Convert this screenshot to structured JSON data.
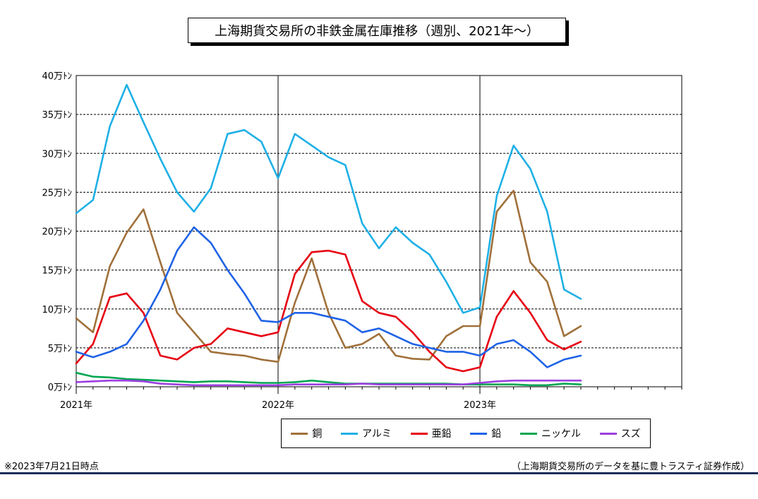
{
  "title": "上海期貨交易所の非鉄金属在庫推移（週別、2021年～）",
  "note_left": "※2023年7月21日時点",
  "note_right": "（上海期貨交易所のデータを基に豊トラスティ証券作成）",
  "chart_data": {
    "type": "line",
    "title": "上海期貨交易所の非鉄金属在庫推移（週別、2021年～）",
    "xlabel": "",
    "ylabel": "",
    "ylim": [
      0,
      40
    ],
    "y_unit": "万トン",
    "y_ticks": [
      0,
      5,
      10,
      15,
      20,
      25,
      30,
      35,
      40
    ],
    "y_tick_labels": [
      "0万ﾄﾝ",
      "5万ﾄﾝ",
      "10万ﾄﾝ",
      "15万ﾄﾝ",
      "20万ﾄﾝ",
      "25万ﾄﾝ",
      "30万ﾄﾝ",
      "35万ﾄﾝ",
      "40万ﾄﾝ"
    ],
    "x_range": [
      "2021-01",
      "2024-01"
    ],
    "x_ticks": [
      "2021-01",
      "2022-01",
      "2023-01"
    ],
    "x_tick_labels": [
      "2021年",
      "2022年",
      "2023年"
    ],
    "x_minor_ticks": "monthly",
    "grid": "horizontal-dashed",
    "legend_position": "bottom",
    "series": [
      {
        "name": "銅",
        "color": "#a0703a",
        "x": [
          "2021-01",
          "2021-02",
          "2021-03",
          "2021-04",
          "2021-05",
          "2021-06",
          "2021-07",
          "2021-08",
          "2021-09",
          "2021-10",
          "2021-11",
          "2021-12",
          "2022-01",
          "2022-02",
          "2022-03",
          "2022-04",
          "2022-05",
          "2022-06",
          "2022-07",
          "2022-08",
          "2022-09",
          "2022-10",
          "2022-11",
          "2022-12",
          "2023-01",
          "2023-02",
          "2023-03",
          "2023-04",
          "2023-05",
          "2023-06",
          "2023-07"
        ],
        "values": [
          8.8,
          7.0,
          15.5,
          19.8,
          22.8,
          16.0,
          9.5,
          7.0,
          4.5,
          4.2,
          4.0,
          3.5,
          3.2,
          10.8,
          16.5,
          9.5,
          5.0,
          5.5,
          6.8,
          4.0,
          3.6,
          3.5,
          6.5,
          7.8,
          7.8,
          22.5,
          25.2,
          16.0,
          13.5,
          6.5,
          7.8
        ]
      },
      {
        "name": "アルミ",
        "color": "#1fb0e6",
        "x": [
          "2021-01",
          "2021-02",
          "2021-03",
          "2021-04",
          "2021-05",
          "2021-06",
          "2021-07",
          "2021-08",
          "2021-09",
          "2021-10",
          "2021-11",
          "2021-12",
          "2022-01",
          "2022-02",
          "2022-03",
          "2022-04",
          "2022-05",
          "2022-06",
          "2022-07",
          "2022-08",
          "2022-09",
          "2022-10",
          "2022-11",
          "2022-12",
          "2023-01",
          "2023-02",
          "2023-03",
          "2023-04",
          "2023-05",
          "2023-06",
          "2023-07"
        ],
        "values": [
          22.3,
          24.0,
          33.5,
          38.8,
          34.0,
          29.3,
          25.0,
          22.5,
          25.5,
          32.5,
          33.0,
          31.5,
          26.8,
          32.5,
          31.0,
          29.5,
          28.5,
          21.0,
          17.8,
          20.5,
          18.5,
          17.0,
          13.5,
          9.5,
          10.2,
          24.5,
          31.0,
          28.0,
          22.5,
          12.5,
          11.3
        ]
      },
      {
        "name": "亜鉛",
        "color": "#e60012",
        "x": [
          "2021-01",
          "2021-02",
          "2021-03",
          "2021-04",
          "2021-05",
          "2021-06",
          "2021-07",
          "2021-08",
          "2021-09",
          "2021-10",
          "2021-11",
          "2021-12",
          "2022-01",
          "2022-02",
          "2022-03",
          "2022-04",
          "2022-05",
          "2022-06",
          "2022-07",
          "2022-08",
          "2022-09",
          "2022-10",
          "2022-11",
          "2022-12",
          "2023-01",
          "2023-02",
          "2023-03",
          "2023-04",
          "2023-05",
          "2023-06",
          "2023-07"
        ],
        "values": [
          3.0,
          5.5,
          11.5,
          12.0,
          9.5,
          4.0,
          3.5,
          5.0,
          5.5,
          7.5,
          7.0,
          6.5,
          7.0,
          14.5,
          17.3,
          17.5,
          17.0,
          11.0,
          9.5,
          9.0,
          7.0,
          4.5,
          2.5,
          2.0,
          2.5,
          9.0,
          12.3,
          9.5,
          6.0,
          4.8,
          5.8
        ]
      },
      {
        "name": "鉛",
        "color": "#1f63e6",
        "x": [
          "2021-01",
          "2021-02",
          "2021-03",
          "2021-04",
          "2021-05",
          "2021-06",
          "2021-07",
          "2021-08",
          "2021-09",
          "2021-10",
          "2021-11",
          "2021-12",
          "2022-01",
          "2022-02",
          "2022-03",
          "2022-04",
          "2022-05",
          "2022-06",
          "2022-07",
          "2022-08",
          "2022-09",
          "2022-10",
          "2022-11",
          "2022-12",
          "2023-01",
          "2023-02",
          "2023-03",
          "2023-04",
          "2023-05",
          "2023-06",
          "2023-07"
        ],
        "values": [
          4.5,
          3.8,
          4.5,
          5.5,
          8.5,
          12.5,
          17.5,
          20.5,
          18.5,
          15.0,
          12.0,
          8.5,
          8.3,
          9.5,
          9.5,
          9.0,
          8.5,
          7.0,
          7.5,
          6.5,
          5.5,
          5.0,
          4.5,
          4.5,
          4.0,
          5.5,
          6.0,
          4.5,
          2.5,
          3.5,
          4.0
        ]
      },
      {
        "name": "ニッケル",
        "color": "#00a650",
        "x": [
          "2021-01",
          "2021-02",
          "2021-03",
          "2021-04",
          "2021-05",
          "2021-06",
          "2021-07",
          "2021-08",
          "2021-09",
          "2021-10",
          "2021-11",
          "2021-12",
          "2022-01",
          "2022-02",
          "2022-03",
          "2022-04",
          "2022-05",
          "2022-06",
          "2022-07",
          "2022-08",
          "2022-09",
          "2022-10",
          "2022-11",
          "2022-12",
          "2023-01",
          "2023-02",
          "2023-03",
          "2023-04",
          "2023-05",
          "2023-06",
          "2023-07"
        ],
        "values": [
          1.8,
          1.3,
          1.2,
          1.0,
          0.9,
          0.8,
          0.7,
          0.6,
          0.7,
          0.7,
          0.6,
          0.5,
          0.5,
          0.6,
          0.8,
          0.6,
          0.4,
          0.4,
          0.4,
          0.4,
          0.4,
          0.4,
          0.4,
          0.3,
          0.3,
          0.3,
          0.3,
          0.2,
          0.2,
          0.4,
          0.3
        ]
      },
      {
        "name": "スズ",
        "color": "#9b3fe0",
        "x": [
          "2021-01",
          "2021-02",
          "2021-03",
          "2021-04",
          "2021-05",
          "2021-06",
          "2021-07",
          "2021-08",
          "2021-09",
          "2021-10",
          "2021-11",
          "2021-12",
          "2022-01",
          "2022-02",
          "2022-03",
          "2022-04",
          "2022-05",
          "2022-06",
          "2022-07",
          "2022-08",
          "2022-09",
          "2022-10",
          "2022-11",
          "2022-12",
          "2023-01",
          "2023-02",
          "2023-03",
          "2023-04",
          "2023-05",
          "2023-06",
          "2023-07"
        ],
        "values": [
          0.6,
          0.7,
          0.8,
          0.8,
          0.7,
          0.4,
          0.3,
          0.2,
          0.2,
          0.2,
          0.2,
          0.2,
          0.2,
          0.3,
          0.3,
          0.3,
          0.3,
          0.4,
          0.3,
          0.3,
          0.3,
          0.3,
          0.3,
          0.3,
          0.5,
          0.7,
          0.8,
          0.8,
          0.8,
          0.8,
          0.8
        ]
      }
    ]
  }
}
